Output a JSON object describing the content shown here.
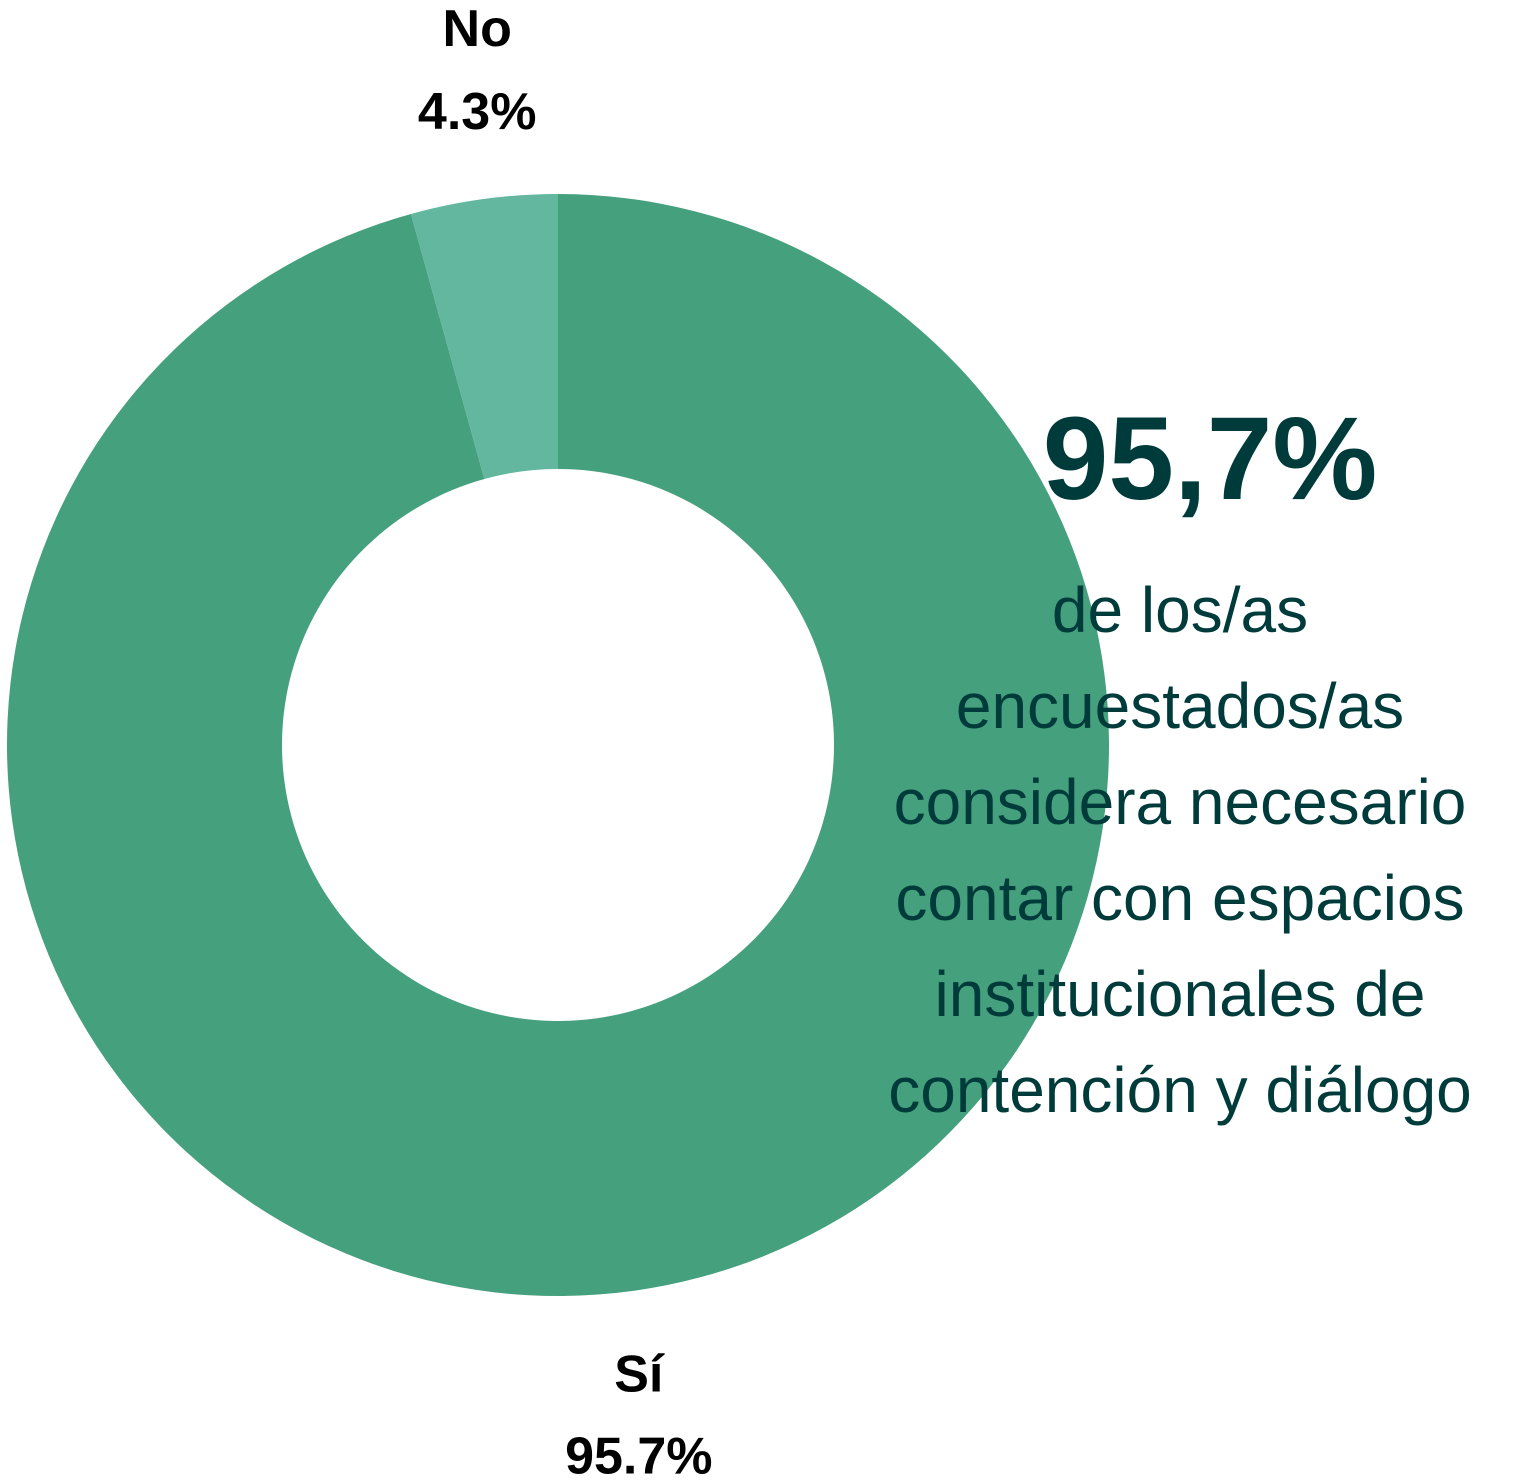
{
  "chart_data": {
    "type": "donut",
    "categories": [
      "Sí",
      "No"
    ],
    "values": [
      95.7,
      4.3
    ],
    "value_labels": [
      "95.7%",
      "4.3%"
    ],
    "colors": [
      "#45a07d",
      "#62b79e"
    ],
    "annotation": {
      "headline": "95,7%",
      "lines": [
        "de los/as",
        "encuestados/as",
        "considera necesario",
        "contar con espacios",
        "institucionales de",
        "contención y diálogo"
      ]
    }
  }
}
